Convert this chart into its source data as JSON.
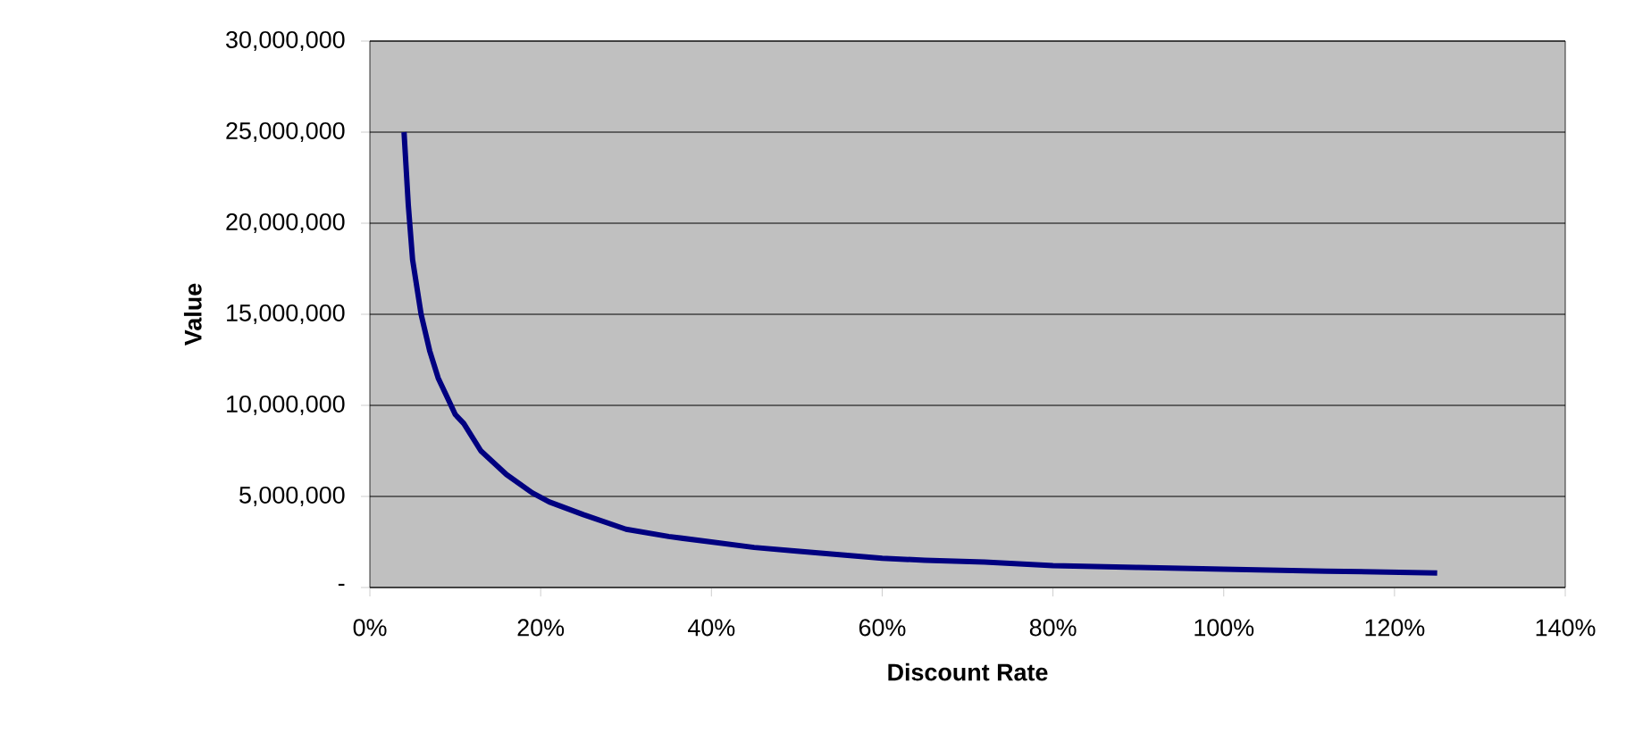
{
  "chart_data": {
    "type": "line",
    "xlabel": "Discount Rate",
    "ylabel": "Value",
    "x": [
      0.04,
      0.045,
      0.05,
      0.06,
      0.07,
      0.08,
      0.09,
      0.1,
      0.11,
      0.13,
      0.16,
      0.19,
      0.21,
      0.25,
      0.3,
      0.35,
      0.4,
      0.45,
      0.5,
      0.55,
      0.6,
      0.65,
      0.72,
      0.8,
      0.9,
      1.0,
      1.12,
      1.25
    ],
    "series": [
      {
        "color": "#000080",
        "values": [
          25000000,
          21000000,
          18000000,
          15000000,
          13000000,
          11500000,
          10500000,
          9500000,
          9000000,
          7500000,
          6200000,
          5200000,
          4700000,
          4000000,
          3200000,
          2800000,
          2500000,
          2200000,
          2000000,
          1800000,
          1600000,
          1500000,
          1400000,
          1200000,
          1100000,
          1000000,
          900000,
          800000
        ]
      }
    ],
    "xlim": [
      0,
      1.4
    ],
    "ylim": [
      0,
      30000000
    ],
    "xticks": [
      {
        "value": 0,
        "label": "0%"
      },
      {
        "value": 0.2,
        "label": "20%"
      },
      {
        "value": 0.4,
        "label": "40%"
      },
      {
        "value": 0.6,
        "label": "60%"
      },
      {
        "value": 0.8,
        "label": "80%"
      },
      {
        "value": 1.0,
        "label": "100%"
      },
      {
        "value": 1.2,
        "label": "120%"
      },
      {
        "value": 1.4,
        "label": "140%"
      }
    ],
    "yticks": [
      {
        "value": 0,
        "label": "-"
      },
      {
        "value": 5000000,
        "label": "5,000,000"
      },
      {
        "value": 10000000,
        "label": "10,000,000"
      },
      {
        "value": 15000000,
        "label": "15,000,000"
      },
      {
        "value": 20000000,
        "label": "20,000,000"
      },
      {
        "value": 25000000,
        "label": "25,000,000"
      },
      {
        "value": 30000000,
        "label": "30,000,000"
      }
    ],
    "grid": "y",
    "marker": "none",
    "line_style": "solid"
  }
}
